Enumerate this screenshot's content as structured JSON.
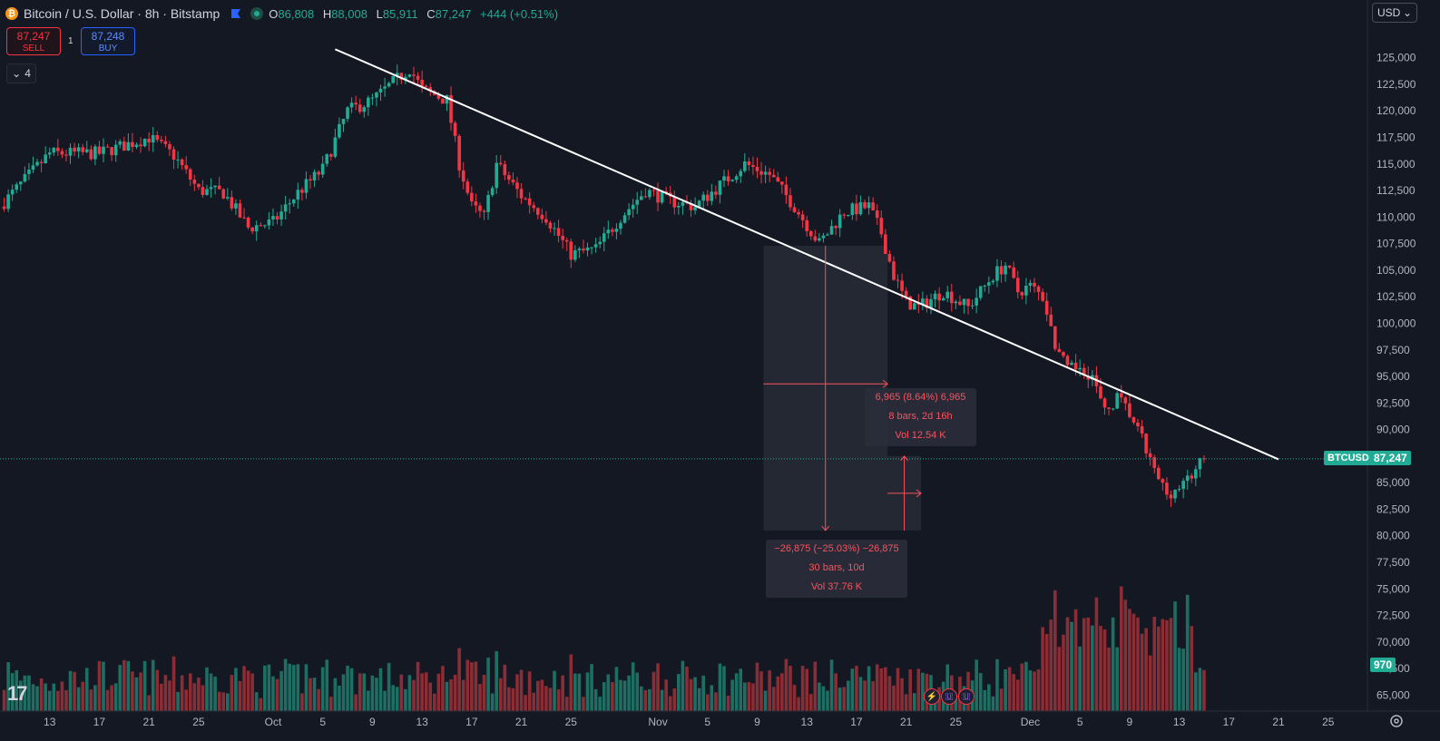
{
  "header": {
    "symbol_title": "Bitcoin / U.S. Dollar · 8h · Bitstamp",
    "open_label": "O",
    "open": "86,808",
    "high_label": "H",
    "high": "88,008",
    "low_label": "L",
    "low": "85,911",
    "close_label": "C",
    "close": "87,247",
    "change": "+444 (+0.51%)",
    "coin_icon": "bitcoin-icon",
    "flag_icon": "flag-icon",
    "status_icon": "market-open-dot-icon"
  },
  "trade": {
    "sell_price": "87,247",
    "sell_label": "SELL",
    "buy_price": "87,248",
    "buy_label": "BUY",
    "spread": "1"
  },
  "indicators_toggle": {
    "icon": "chevron-down-icon",
    "count": "4"
  },
  "currency_select": {
    "value": "USD",
    "icon": "chevron-down-icon"
  },
  "price_axis": {
    "ticks": [
      "125,000",
      "122,500",
      "120,000",
      "117,500",
      "115,000",
      "112,500",
      "110,000",
      "107,500",
      "105,000",
      "102,500",
      "100,000",
      "97,500",
      "95,000",
      "92,500",
      "90,000",
      "87,500",
      "85,000",
      "82,500",
      "80,000",
      "77,500",
      "75,000",
      "72,500",
      "70,000",
      "67,500",
      "65,000"
    ],
    "symbol_tag": "BTCUSD",
    "last_price_tag": "87,247",
    "volume_tag": "970"
  },
  "time_axis": {
    "labels": [
      "13",
      "17",
      "21",
      "25",
      "Oct",
      "5",
      "9",
      "13",
      "17",
      "21",
      "25",
      "Nov",
      "5",
      "9",
      "13",
      "17",
      "21",
      "25",
      "Dec",
      "5",
      "9",
      "13",
      "17",
      "21",
      "25"
    ]
  },
  "measure_1": {
    "line1": "−26,875 (−25.03%) −26,875",
    "line2": "30 bars, 10d",
    "line3": "Vol 37.76 K"
  },
  "measure_2": {
    "line1": "6,965 (8.64%) 6,965",
    "line2": "8 bars, 2d 16h",
    "line3": "Vol 12.54 K"
  },
  "logo": {
    "text": "17"
  },
  "settings": {
    "icon": "gear-icon"
  },
  "events": {
    "icons": [
      "lightning-icon",
      "us-flag-icon",
      "us-flag-icon"
    ]
  },
  "colors": {
    "up": "#22ab94",
    "down": "#f23645",
    "bg": "#141823",
    "trendline": "#ffffff",
    "measure": "#f7525f",
    "last_price_line": "#22ab94"
  },
  "chart_data": {
    "type": "candlestick",
    "symbol": "BTCUSD",
    "interval": "8h",
    "exchange": "Bitstamp",
    "y_range": [
      63500,
      128300
    ],
    "x_range_days": [
      "Sep 9",
      "Dec 28"
    ],
    "close_anchors_by_day": [
      [
        0,
        111000
      ],
      [
        4,
        116000
      ],
      [
        8,
        116000
      ],
      [
        12,
        117500
      ],
      [
        14,
        115800
      ],
      [
        16,
        112500
      ],
      [
        18,
        112300
      ],
      [
        20,
        109000
      ],
      [
        22,
        109500
      ],
      [
        24,
        112300
      ],
      [
        26,
        114500
      ],
      [
        28,
        120000
      ],
      [
        30,
        121000
      ],
      [
        32,
        123000
      ],
      [
        33,
        124000
      ],
      [
        34,
        122000
      ],
      [
        36,
        121000
      ],
      [
        37,
        115000
      ],
      [
        38,
        111000
      ],
      [
        39,
        110000
      ],
      [
        40,
        115000
      ],
      [
        42,
        112000
      ],
      [
        44,
        110000
      ],
      [
        46,
        106500
      ],
      [
        48,
        107000
      ],
      [
        50,
        110000
      ],
      [
        52,
        112500
      ],
      [
        54,
        111500
      ],
      [
        56,
        111000
      ],
      [
        58,
        113000
      ],
      [
        60,
        115000
      ],
      [
        62,
        114000
      ],
      [
        64,
        111000
      ],
      [
        66,
        107500
      ],
      [
        68,
        110500
      ],
      [
        70,
        111000
      ],
      [
        71,
        108500
      ],
      [
        72,
        104500
      ],
      [
        73,
        102000
      ],
      [
        74,
        101500
      ],
      [
        76,
        103000
      ],
      [
        78,
        101500
      ],
      [
        80,
        104500
      ],
      [
        81,
        105500
      ],
      [
        82,
        103000
      ],
      [
        83,
        103500
      ],
      [
        84,
        102500
      ],
      [
        85,
        98000
      ],
      [
        86,
        95500
      ],
      [
        87,
        96000
      ],
      [
        88,
        95000
      ],
      [
        89,
        91500
      ],
      [
        90,
        93000
      ],
      [
        91,
        91500
      ],
      [
        92,
        89000
      ],
      [
        93,
        86000
      ],
      [
        94,
        84000
      ],
      [
        95,
        84500
      ],
      [
        96,
        85500
      ],
      [
        97,
        87247
      ]
    ],
    "volume_range": [
      0,
      2500
    ],
    "trendline": {
      "from": [
        "Oct 6",
        125800
      ],
      "to": [
        "Dec 25",
        87200
      ]
    },
    "measure_down": {
      "from_day": 61.5,
      "to_day": 71.5,
      "from_price": 107300,
      "to_price": 80500,
      "change": -26875,
      "pct": -25.03,
      "bars": 30,
      "duration": "10d",
      "vol": "37.76K"
    },
    "measure_up": {
      "from_day": 71.5,
      "to_day": 74.2,
      "from_price": 80500,
      "to_price": 87500,
      "change": 6965,
      "pct": 8.64,
      "bars": 8,
      "duration": "2d 16h",
      "vol": "12.54K"
    },
    "last_price": 87247
  }
}
